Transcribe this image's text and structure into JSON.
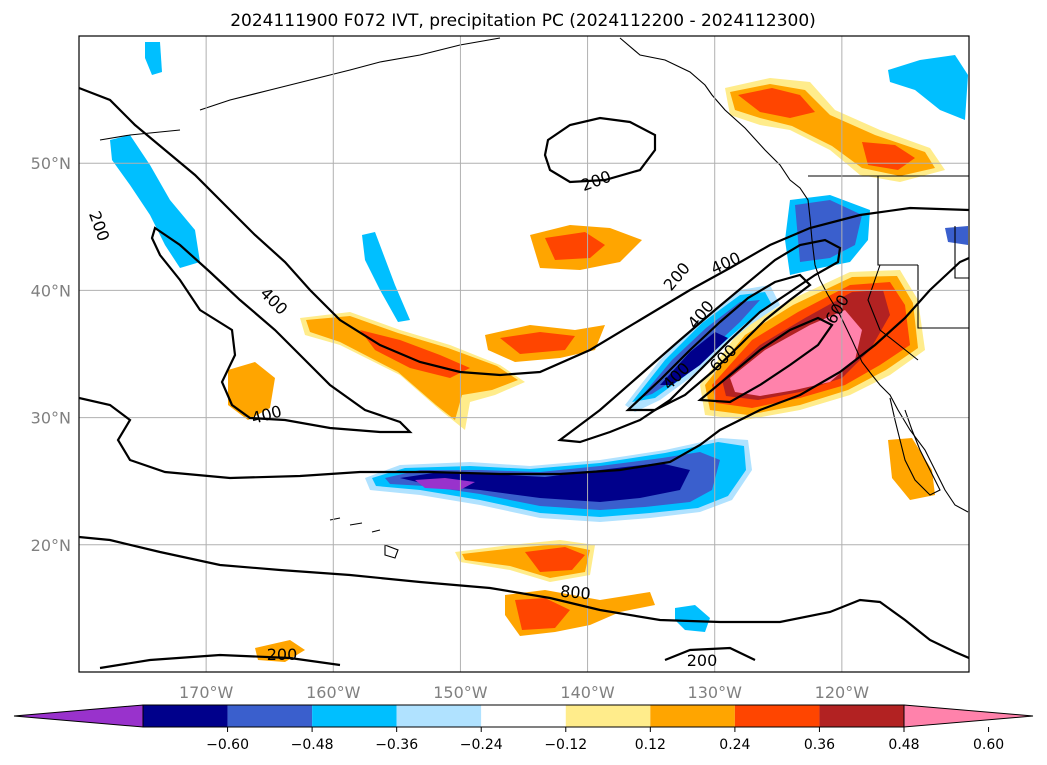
{
  "chart_data": {
    "type": "heatmap",
    "title": "2024111900 F072 IVT, precipitation PC (2024112200 - 2024112300)",
    "map_extent": {
      "lon": [
        -180,
        -110
      ],
      "lat": [
        10,
        60
      ]
    },
    "lon_ticks": [
      "170°W",
      "160°W",
      "150°W",
      "140°W",
      "130°W",
      "120°W"
    ],
    "lon_tick_values": [
      -170,
      -160,
      -150,
      -140,
      -130,
      -120
    ],
    "lat_ticks": [
      "20°N",
      "30°N",
      "40°N",
      "50°N"
    ],
    "lat_tick_values": [
      20,
      30,
      40,
      50
    ],
    "grid": true,
    "colorbar": {
      "orientation": "horizontal",
      "extend": "both",
      "ticks": [
        "−0.60",
        "−0.48",
        "−0.36",
        "−0.24",
        "−0.12",
        "0.12",
        "0.24",
        "0.36",
        "0.48",
        "0.60"
      ],
      "colors": [
        "#9932cc",
        "#00008b",
        "#3a5fcd",
        "#00bfff",
        "#b0e2ff",
        "#ffffff",
        "#ffec8b",
        "#ffa500",
        "#ff4500",
        "#b22222",
        "#ff82ab"
      ]
    },
    "ivt_contour_labels": [
      "200",
      "200",
      "200",
      "400",
      "400",
      "400",
      "400",
      "600",
      "600",
      "800",
      "200",
      "200",
      "400"
    ],
    "ivt_max_region": {
      "lon": -121,
      "lat": 34,
      "level": 800
    }
  }
}
